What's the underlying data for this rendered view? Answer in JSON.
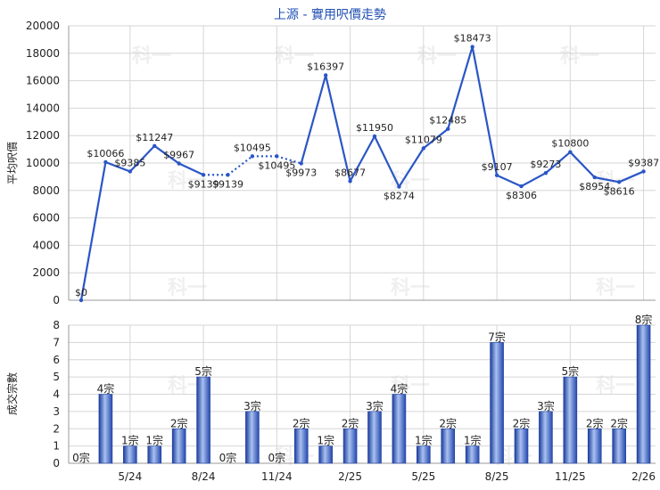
{
  "chart_data": [
    {
      "type": "line",
      "title": "上源 - 實用呎價走勢",
      "ylabel": "平均呎價",
      "ylim": [
        0,
        20000
      ],
      "yticks": [
        0,
        2000,
        4000,
        6000,
        8000,
        10000,
        12000,
        14000,
        16000,
        18000,
        20000
      ],
      "grid": true,
      "series": [
        {
          "values": [
            0,
            10066,
            9385,
            11247,
            9967,
            9139,
            9139,
            10495,
            10495,
            9973,
            16397,
            8677,
            11950,
            8274,
            11079,
            12485,
            18473,
            9107,
            8306,
            9273,
            10800,
            8954,
            8616,
            9387
          ],
          "labels": [
            "$0",
            "$10066",
            "$9385",
            "$11247",
            "$9967",
            "$9139",
            "$9139",
            "$10495",
            "$10495",
            "$9973",
            "$16397",
            "$8677",
            "$11950",
            "$8274",
            "$11079",
            "$12485",
            "$18473",
            "$9107",
            "$8306",
            "$9273",
            "$10800",
            "$8954",
            "$8616",
            "$9387"
          ],
          "interpolated": [
            false,
            false,
            false,
            false,
            false,
            false,
            true,
            false,
            true,
            false,
            false,
            false,
            false,
            false,
            false,
            false,
            false,
            false,
            false,
            false,
            false,
            false,
            false,
            false
          ]
        }
      ],
      "color": "#2a56c6"
    },
    {
      "type": "bar",
      "ylabel": "成交宗數",
      "ylim": [
        0,
        8
      ],
      "yticks": [
        0,
        1,
        2,
        3,
        4,
        5,
        6,
        7,
        8
      ],
      "categories": [
        "5/24",
        "8/24",
        "11/24",
        "2/25",
        "5/25",
        "8/25",
        "11/25",
        "2/26"
      ],
      "values": [
        0,
        4,
        1,
        1,
        2,
        5,
        0,
        3,
        0,
        2,
        1,
        2,
        3,
        4,
        1,
        2,
        1,
        7,
        2,
        3,
        5,
        2,
        2,
        8
      ],
      "labels": [
        "0宗",
        "4宗",
        "1宗",
        "1宗",
        "2宗",
        "5宗",
        "0宗",
        "3宗",
        "0宗",
        "2宗",
        "1宗",
        "2宗",
        "3宗",
        "4宗",
        "1宗",
        "2宗",
        "1宗",
        "7宗",
        "2宗",
        "3宗",
        "5宗",
        "2宗",
        "2宗",
        "8宗"
      ],
      "grid": true,
      "color": "#2f55c0"
    }
  ],
  "watermark": "科一"
}
